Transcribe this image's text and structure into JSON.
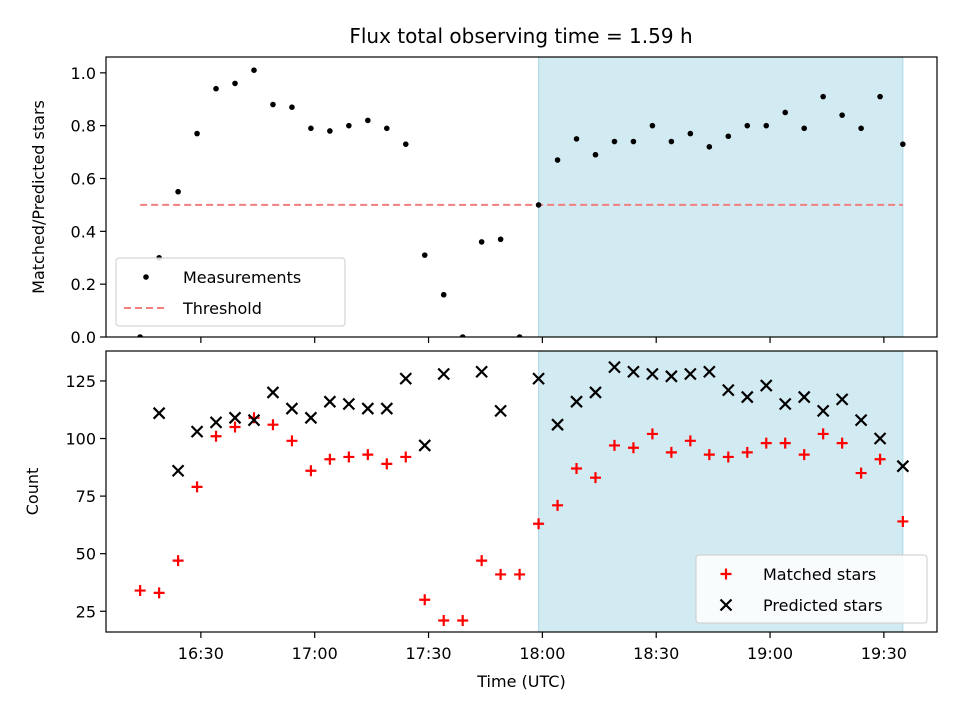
{
  "title": "Flux total observing time = 1.59 h",
  "chart_data": [
    {
      "type": "scatter",
      "ylabel": "Matched/Predicted stars",
      "ylim": [
        0,
        1.06
      ],
      "yticks": [
        0.0,
        0.2,
        0.4,
        0.6,
        0.8,
        1.0
      ],
      "ytick_labels": [
        "0.0",
        "0.2",
        "0.4",
        "0.6",
        "0.8",
        "1.0"
      ],
      "shaded_region": {
        "from": "17:59",
        "to": "19:35",
        "color": "#add8e6"
      },
      "threshold": {
        "name": "Threshold",
        "value": 0.5,
        "from": "16:14",
        "to": "19:35",
        "color": "#f08080",
        "style": "dashed"
      },
      "legend_position": "lower-left",
      "legend": [
        "Measurements",
        "Threshold"
      ],
      "series": [
        {
          "name": "Measurements",
          "marker": "dot",
          "color": "#000000",
          "x": [
            "16:14",
            "16:19",
            "16:24",
            "16:29",
            "16:34",
            "16:39",
            "16:44",
            "16:49",
            "16:54",
            "16:59",
            "17:04",
            "17:09",
            "17:14",
            "17:19",
            "17:24",
            "17:29",
            "17:34",
            "17:39",
            "17:44",
            "17:49",
            "17:54",
            "17:59",
            "18:04",
            "18:09",
            "18:14",
            "18:19",
            "18:24",
            "18:29",
            "18:34",
            "18:39",
            "18:44",
            "18:49",
            "18:54",
            "18:59",
            "19:04",
            "19:09",
            "19:14",
            "19:19",
            "19:24",
            "19:29",
            "19:35"
          ],
          "y": [
            0.0,
            0.3,
            0.55,
            0.77,
            0.94,
            0.96,
            1.01,
            0.88,
            0.87,
            0.79,
            0.78,
            0.8,
            0.82,
            0.79,
            0.73,
            0.31,
            0.16,
            0.0,
            0.36,
            0.37,
            0.0,
            0.5,
            0.67,
            0.75,
            0.69,
            0.74,
            0.74,
            0.8,
            0.74,
            0.77,
            0.72,
            0.76,
            0.8,
            0.8,
            0.85,
            0.79,
            0.91,
            0.84,
            0.79,
            0.91,
            0.73
          ]
        }
      ]
    },
    {
      "type": "scatter",
      "ylabel": "Count",
      "xlabel": "Time (UTC)",
      "ylim": [
        16,
        138
      ],
      "yticks": [
        25,
        50,
        75,
        100,
        125
      ],
      "ytick_labels": [
        "25",
        "50",
        "75",
        "100",
        "125"
      ],
      "xticks": [
        "16:30",
        "17:00",
        "17:30",
        "18:00",
        "18:30",
        "19:00",
        "19:30"
      ],
      "xlim": [
        "16:05",
        "19:44"
      ],
      "shaded_region": {
        "from": "17:59",
        "to": "19:35",
        "color": "#add8e6"
      },
      "legend_position": "lower-right",
      "legend": [
        "Matched stars",
        "Predicted stars"
      ],
      "series": [
        {
          "name": "Matched stars",
          "marker": "plus",
          "color": "#ff0000",
          "x": [
            "16:14",
            "16:19",
            "16:24",
            "16:29",
            "16:34",
            "16:39",
            "16:44",
            "16:49",
            "16:54",
            "16:59",
            "17:04",
            "17:09",
            "17:14",
            "17:19",
            "17:24",
            "17:29",
            "17:34",
            "17:39",
            "17:44",
            "17:49",
            "17:54",
            "17:59",
            "18:04",
            "18:09",
            "18:14",
            "18:19",
            "18:24",
            "18:29",
            "18:34",
            "18:39",
            "18:44",
            "18:49",
            "18:54",
            "18:59",
            "19:04",
            "19:09",
            "19:14",
            "19:19",
            "19:24",
            "19:29",
            "19:35"
          ],
          "y": [
            34,
            33,
            47,
            79,
            101,
            105,
            109,
            106,
            99,
            86,
            91,
            92,
            93,
            89,
            92,
            30,
            21,
            21,
            47,
            41,
            41,
            63,
            71,
            87,
            83,
            97,
            96,
            102,
            94,
            99,
            93,
            92,
            94,
            98,
            98,
            93,
            102,
            98,
            85,
            91,
            64
          ]
        },
        {
          "name": "Predicted stars",
          "marker": "x",
          "color": "#000000",
          "x": [
            "16:19",
            "16:24",
            "16:29",
            "16:34",
            "16:39",
            "16:44",
            "16:49",
            "16:54",
            "16:59",
            "17:04",
            "17:09",
            "17:14",
            "17:19",
            "17:24",
            "17:29",
            "17:34",
            "17:44",
            "17:49",
            "17:59",
            "18:04",
            "18:09",
            "18:14",
            "18:19",
            "18:24",
            "18:29",
            "18:34",
            "18:39",
            "18:44",
            "18:49",
            "18:54",
            "18:59",
            "19:04",
            "19:09",
            "19:14",
            "19:19",
            "19:24",
            "19:29",
            "19:35"
          ],
          "y": [
            111,
            86,
            103,
            107,
            109,
            108,
            120,
            113,
            109,
            116,
            115,
            113,
            113,
            126,
            97,
            128,
            129,
            112,
            126,
            106,
            116,
            120,
            131,
            129,
            128,
            127,
            128,
            129,
            121,
            118,
            123,
            115,
            118,
            112,
            117,
            108,
            100,
            88
          ]
        }
      ]
    }
  ]
}
